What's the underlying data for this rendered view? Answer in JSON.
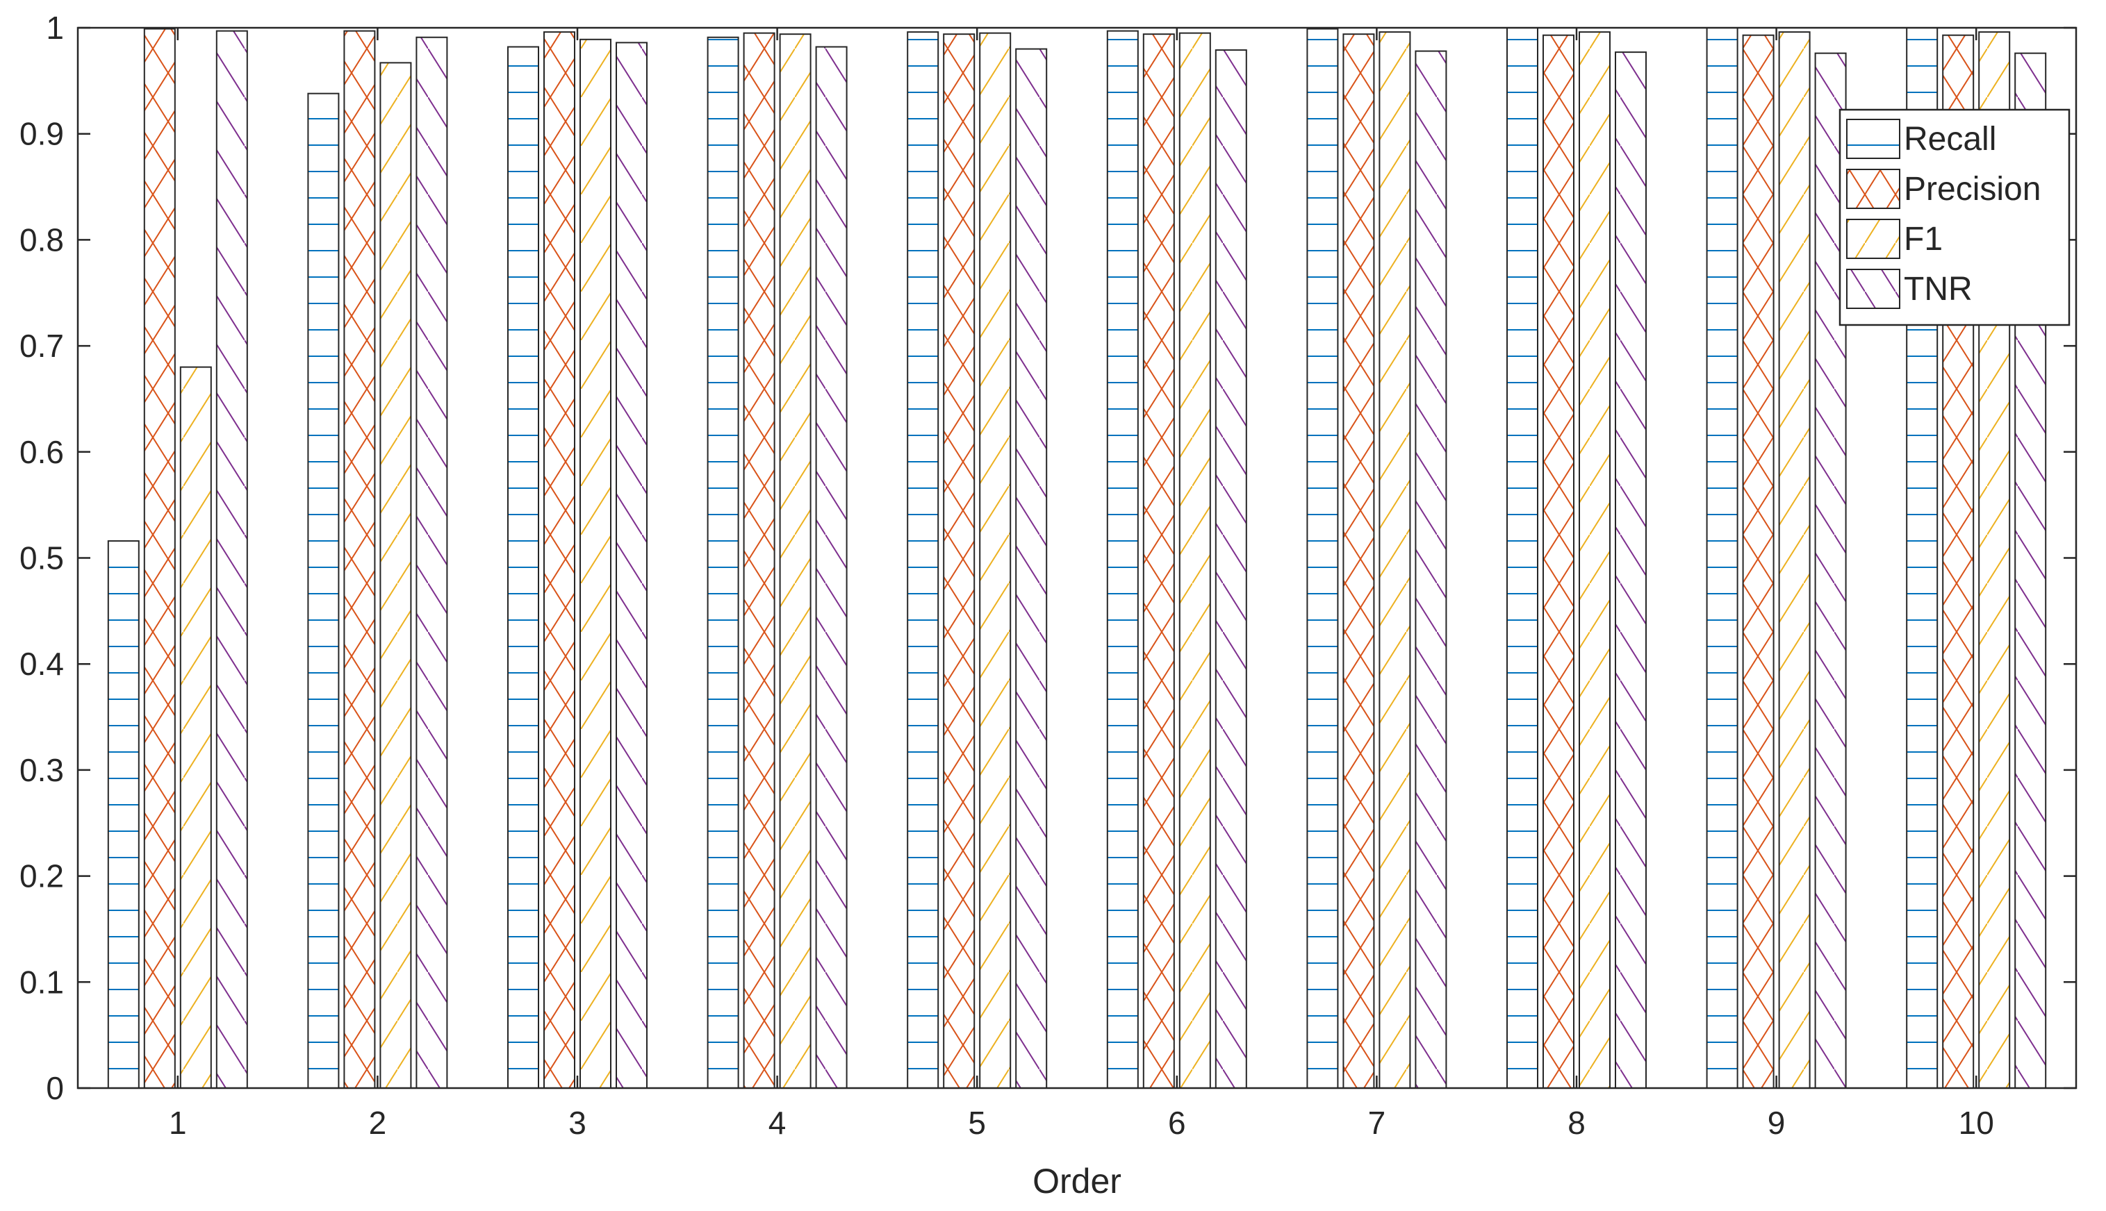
{
  "chart_data": {
    "type": "bar",
    "title": "",
    "xlabel": "Order",
    "ylabel": "",
    "categories": [
      "1",
      "2",
      "3",
      "4",
      "5",
      "6",
      "7",
      "8",
      "9",
      "10"
    ],
    "ylim": [
      0,
      1
    ],
    "yticks": [
      "0",
      "0.1",
      "0.2",
      "0.3",
      "0.4",
      "0.5",
      "0.6",
      "0.7",
      "0.8",
      "0.9",
      "1"
    ],
    "grid": false,
    "legend_position": "top-right",
    "series": [
      {
        "name": "Recall",
        "color": "#0072BD",
        "hatch": "horizontal",
        "values": [
          0.516,
          0.938,
          0.982,
          0.991,
          0.996,
          0.997,
          0.999,
          1.0,
          1.0,
          1.0
        ]
      },
      {
        "name": "Precision",
        "color": "#D95319",
        "hatch": "cross",
        "values": [
          0.999,
          0.997,
          0.996,
          0.995,
          0.994,
          0.994,
          0.994,
          0.993,
          0.993,
          0.993
        ]
      },
      {
        "name": "F1",
        "color": "#EDB120",
        "hatch": "forward-diagonal",
        "values": [
          0.68,
          0.967,
          0.989,
          0.994,
          0.995,
          0.995,
          0.996,
          0.996,
          0.996,
          0.996
        ]
      },
      {
        "name": "TNR",
        "color": "#7E2F8E",
        "hatch": "backward-diagonal",
        "values": [
          0.997,
          0.991,
          0.986,
          0.982,
          0.98,
          0.979,
          0.978,
          0.977,
          0.976,
          0.976
        ]
      }
    ]
  }
}
